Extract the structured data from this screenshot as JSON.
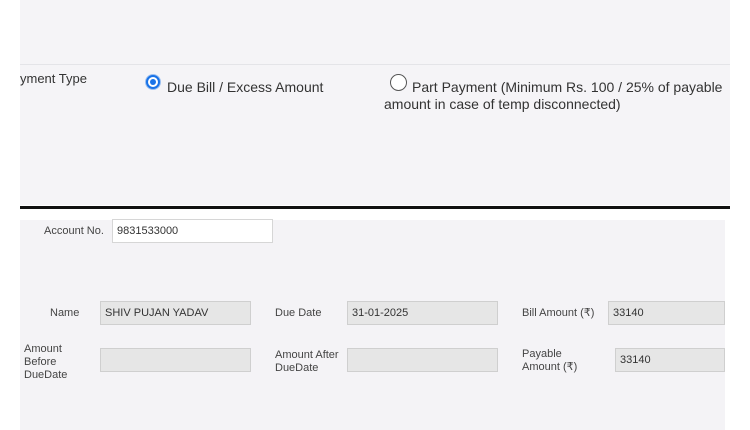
{
  "payment": {
    "label": "yment Type",
    "options": [
      {
        "label": "Due Bill / Excess Amount",
        "selected": true
      },
      {
        "label_line1": "Part Payment  (Minimum Rs. 100 / 25% of payable",
        "label_line2": "amount in case of temp disconnected)",
        "selected": false
      }
    ]
  },
  "form": {
    "account_label": "Account No.",
    "account_value": "9831533000",
    "name_label": "Name",
    "name_value": "SHIV PUJAN YADAV",
    "due_date_label": "Due Date",
    "due_date_value": "31-01-2025",
    "bill_amount_label": "Bill Amount (₹)",
    "bill_amount_value": "33140",
    "amount_before_label": "Amount Before DueDate",
    "amount_before_value": "",
    "amount_after_label": "Amount After DueDate",
    "amount_after_value": "",
    "payable_label": "Payable Amount (₹)",
    "payable_value": "33140"
  },
  "colors": {
    "accent": "#1a73e8",
    "panel": "#f4f3f6",
    "readonly_field": "#e6e6e6"
  }
}
